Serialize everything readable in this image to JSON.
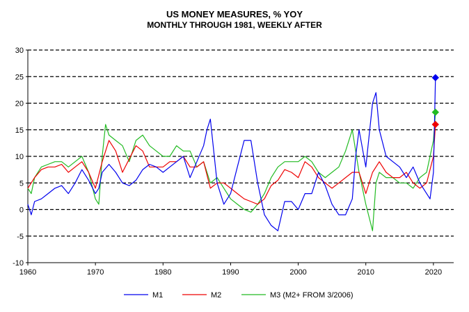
{
  "chart_data": {
    "type": "line",
    "title": "US MONEY MEASURES, % YOY",
    "subtitle": "MONTHLY THROUGH 1981, WEEKLY AFTER",
    "xlabel": "",
    "ylabel": "",
    "xlim": [
      1960,
      2023
    ],
    "ylim": [
      -10,
      30
    ],
    "x_ticks": [
      1960,
      1970,
      1980,
      1990,
      2000,
      2010,
      2020
    ],
    "y_ticks": [
      -10,
      -5,
      0,
      5,
      10,
      15,
      20,
      25,
      30
    ],
    "grid": "horizontal dashed",
    "legend_position": "bottom",
    "colors": {
      "M1": "#0000ee",
      "M2": "#ee0000",
      "M3": "#22bb22"
    },
    "series": [
      {
        "name": "M1",
        "x": [
          1960,
          1960.5,
          1961,
          1962,
          1963,
          1964,
          1965,
          1966,
          1967,
          1968,
          1969,
          1970,
          1970.5,
          1971,
          1972,
          1973,
          1974,
          1975,
          1976,
          1977,
          1978,
          1979,
          1980,
          1981,
          1982,
          1983,
          1984,
          1985,
          1986,
          1986.5,
          1987,
          1988,
          1989,
          1990,
          1991,
          1992,
          1993,
          1994,
          1995,
          1996,
          1997,
          1998,
          1999,
          2000,
          2001,
          2002,
          2003,
          2004,
          2005,
          2006,
          2007,
          2008,
          2008.5,
          2009,
          2010,
          2011,
          2011.5,
          2012,
          2013,
          2014,
          2015,
          2016,
          2017,
          2018,
          2019,
          2019.5,
          2020,
          2020.3
        ],
        "y": [
          1,
          -1,
          1.5,
          2,
          3,
          4,
          4.5,
          3,
          5,
          7.5,
          5.5,
          3,
          4,
          7,
          8.5,
          7,
          5,
          4.5,
          5.5,
          7.5,
          8.5,
          8,
          7,
          8,
          9,
          10,
          6,
          9,
          12,
          15,
          17,
          5,
          1,
          3,
          8,
          13,
          13,
          5,
          -1,
          -3,
          -4,
          1.5,
          1.5,
          0,
          3,
          3,
          7,
          4.5,
          1,
          -1,
          -1,
          2,
          10,
          15,
          8,
          20,
          22,
          15,
          10,
          9,
          8,
          6,
          8,
          5,
          3,
          2,
          7,
          24.8
        ]
      },
      {
        "name": "M2",
        "x": [
          1960,
          1961,
          1962,
          1963,
          1964,
          1965,
          1966,
          1967,
          1968,
          1969,
          1970,
          1971,
          1972,
          1973,
          1974,
          1975,
          1976,
          1977,
          1978,
          1979,
          1980,
          1981,
          1982,
          1983,
          1984,
          1985,
          1986,
          1987,
          1988,
          1989,
          1990,
          1991,
          1992,
          1993,
          1994,
          1995,
          1996,
          1997,
          1998,
          1999,
          2000,
          2001,
          2002,
          2003,
          2004,
          2005,
          2006,
          2007,
          2008,
          2009,
          2010,
          2011,
          2012,
          2013,
          2014,
          2015,
          2016,
          2017,
          2018,
          2019,
          2020,
          2020.3
        ],
        "y": [
          4,
          6,
          7.5,
          8,
          8,
          8.5,
          7,
          8,
          9,
          7,
          4,
          9,
          13,
          11,
          7,
          9.5,
          12,
          11,
          8,
          8,
          8,
          9,
          9,
          10,
          8,
          8,
          9,
          4,
          5,
          5,
          4,
          3,
          2,
          1.5,
          1,
          2,
          4.5,
          5.5,
          7.5,
          7,
          6,
          9,
          8,
          6,
          5,
          4,
          5,
          6,
          7,
          7,
          3,
          7,
          9,
          7,
          6,
          6,
          7,
          5,
          4,
          5,
          10,
          16
        ]
      },
      {
        "name": "M3 (M2+ FROM 3/2006)",
        "x": [
          1960,
          1960.5,
          1961,
          1962,
          1963,
          1964,
          1965,
          1966,
          1967,
          1968,
          1969,
          1970,
          1970.5,
          1971,
          1971.5,
          1972,
          1973,
          1974,
          1975,
          1976,
          1977,
          1978,
          1979,
          1980,
          1981,
          1982,
          1983,
          1984,
          1985,
          1986,
          1987,
          1988,
          1989,
          1990,
          1991,
          1992,
          1993,
          1994,
          1995,
          1996,
          1997,
          1998,
          1999,
          2000,
          2001,
          2002,
          2003,
          2004,
          2005,
          2006,
          2007,
          2008,
          2009,
          2010,
          2011,
          2011.5,
          2012,
          2013,
          2014,
          2015,
          2016,
          2017,
          2018,
          2019,
          2020,
          2020.3
        ],
        "y": [
          4,
          3,
          6,
          8,
          8.5,
          9,
          9,
          8,
          9,
          10,
          7,
          2,
          1,
          10,
          16,
          14,
          13,
          12,
          9,
          13,
          14,
          12,
          11,
          10,
          10,
          12,
          11,
          11,
          8,
          9,
          5,
          6,
          4,
          2,
          1,
          0,
          -0.5,
          1,
          3,
          6,
          8,
          9,
          9,
          9,
          10,
          9,
          7,
          6,
          7,
          8,
          11,
          15,
          7,
          1,
          -4,
          5,
          7,
          6,
          6,
          5,
          5,
          4,
          6,
          7,
          13,
          18.3
        ]
      }
    ],
    "markers": [
      {
        "series": "M1",
        "x": 2020.3,
        "y": 24.8,
        "shape": "diamond"
      },
      {
        "series": "M3 (M2+ FROM 3/2006)",
        "x": 2020.3,
        "y": 18.3,
        "shape": "diamond"
      },
      {
        "series": "M2",
        "x": 2020.3,
        "y": 16,
        "shape": "diamond"
      }
    ]
  }
}
